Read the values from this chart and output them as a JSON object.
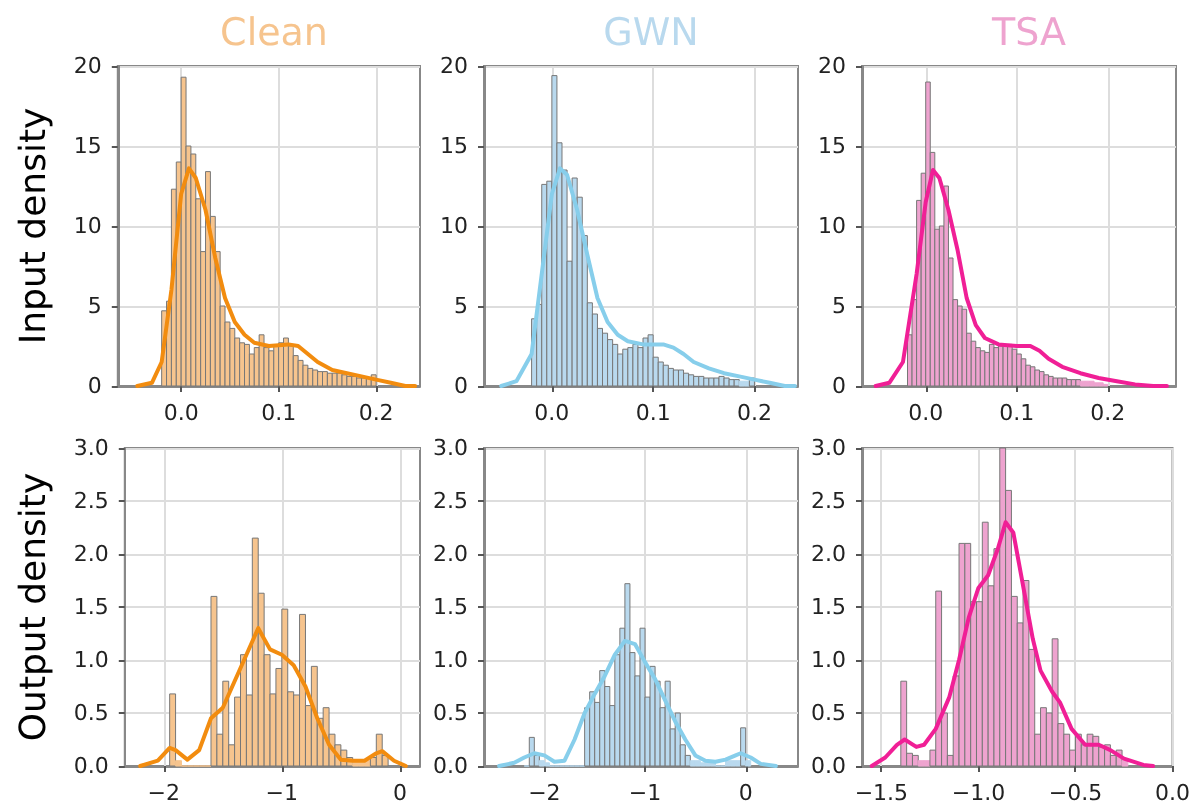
{
  "chart_data": [
    {
      "type": "histogram",
      "title": "Clean",
      "ylabel": "Input density",
      "grid": true,
      "xlim": [
        -0.065,
        0.245
      ],
      "ylim": [
        0,
        20
      ],
      "xticks": [
        {
          "value": 0,
          "label": "0.0"
        },
        {
          "value": 0.1,
          "label": "0.1"
        },
        {
          "value": 0.2,
          "label": "0.2"
        }
      ],
      "yticks": [
        0,
        5,
        10,
        15,
        20
      ],
      "bins": [
        -0.02,
        -0.015,
        -0.01,
        -0.005,
        0,
        0.005,
        0.01,
        0.015,
        0.02,
        0.025,
        0.03,
        0.035,
        0.04,
        0.045,
        0.05,
        0.055,
        0.06,
        0.065,
        0.07,
        0.075,
        0.08,
        0.085,
        0.09,
        0.095,
        0.1,
        0.105,
        0.11,
        0.115,
        0.12,
        0.125,
        0.13,
        0.135,
        0.14,
        0.145,
        0.15,
        0.155,
        0.16,
        0.165,
        0.17,
        0.175,
        0.18,
        0.185,
        0.19,
        0.195,
        0.2
      ],
      "series": [
        {
          "type": "histogram",
          "color": "#f6c48e",
          "values": [
            4.7,
            5.3,
            12.3,
            14.0,
            19.3,
            15.0,
            14.5,
            11.7,
            8.4,
            13.4,
            10.6,
            8.4,
            5.0,
            4.0,
            3.6,
            3.0,
            2.7,
            2.6,
            2.0,
            2.4,
            3.2,
            2.4,
            2.2,
            2.5,
            2.7,
            3.0,
            2.5,
            1.9,
            1.6,
            1.3,
            1.1,
            1.0,
            0.9,
            0.9,
            0.8,
            0.8,
            0.8,
            0.7,
            0.6,
            0.6,
            0.5,
            0.5,
            0.5,
            0.7
          ]
        },
        {
          "type": "line",
          "color": "#f28c0f",
          "x": [
            -0.045,
            -0.03,
            -0.02,
            -0.01,
            0.0,
            0.008,
            0.015,
            0.025,
            0.035,
            0.045,
            0.055,
            0.065,
            0.075,
            0.09,
            0.11,
            0.12,
            0.13,
            0.14,
            0.155,
            0.17,
            0.185,
            0.2,
            0.215,
            0.23,
            0.24
          ],
          "values": [
            0,
            0.2,
            1.5,
            6,
            12,
            13.6,
            13,
            11,
            8,
            5.5,
            4,
            3.2,
            2.7,
            2.5,
            2.6,
            2.5,
            2.0,
            1.5,
            1.0,
            0.8,
            0.6,
            0.4,
            0.2,
            0,
            0
          ]
        }
      ]
    },
    {
      "type": "histogram",
      "title": "GWN",
      "grid": true,
      "xlim": [
        -0.067,
        0.243
      ],
      "ylim": [
        0,
        20
      ],
      "xticks": [
        {
          "value": 0,
          "label": "0.0"
        },
        {
          "value": 0.1,
          "label": "0.1"
        },
        {
          "value": 0.2,
          "label": "0.2"
        }
      ],
      "yticks": [
        0,
        5,
        10,
        15,
        20
      ],
      "bins": [
        -0.02,
        -0.015,
        -0.01,
        -0.005,
        0,
        0.005,
        0.01,
        0.015,
        0.02,
        0.025,
        0.03,
        0.035,
        0.04,
        0.045,
        0.05,
        0.055,
        0.06,
        0.065,
        0.07,
        0.075,
        0.08,
        0.085,
        0.09,
        0.095,
        0.1,
        0.105,
        0.11,
        0.115,
        0.12,
        0.125,
        0.13,
        0.135,
        0.14,
        0.145,
        0.15,
        0.155,
        0.16,
        0.165,
        0.17,
        0.175,
        0.18,
        0.185,
        0.19,
        0.195,
        0.2
      ],
      "series": [
        {
          "type": "histogram",
          "color": "#b9d9ee",
          "values": [
            4.2,
            5.1,
            12.6,
            12.8,
            19.4,
            15.2,
            13.5,
            7.8,
            13.0,
            11.8,
            9.4,
            5.2,
            4.5,
            3.6,
            3.3,
            2.9,
            2.6,
            2.0,
            2.3,
            2.4,
            2.6,
            2.4,
            3.0,
            3.2,
            1.8,
            1.5,
            1.3,
            1.1,
            1.0,
            1.0,
            0.8,
            0.7,
            0.6,
            0.6,
            0.5,
            0.5,
            0.5,
            0.6,
            0.5,
            0.4,
            0.4,
            0.3,
            0.3,
            0.5
          ]
        },
        {
          "type": "line",
          "color": "#87ceeb",
          "x": [
            -0.05,
            -0.035,
            -0.02,
            -0.01,
            0.0,
            0.008,
            0.015,
            0.025,
            0.035,
            0.045,
            0.055,
            0.065,
            0.075,
            0.09,
            0.11,
            0.12,
            0.13,
            0.14,
            0.155,
            0.17,
            0.185,
            0.2,
            0.215,
            0.23,
            0.24
          ],
          "values": [
            0,
            0.3,
            2,
            7,
            12,
            13.6,
            13.2,
            11,
            8.2,
            5.5,
            4,
            3.2,
            2.8,
            2.6,
            2.6,
            2.4,
            2.0,
            1.5,
            1.1,
            0.8,
            0.6,
            0.4,
            0.2,
            0,
            0
          ]
        }
      ]
    },
    {
      "type": "histogram",
      "title": "TSA",
      "grid": true,
      "xlim": [
        -0.07,
        0.275
      ],
      "ylim": [
        0,
        20
      ],
      "xticks": [
        {
          "value": 0,
          "label": "0.0"
        },
        {
          "value": 0.1,
          "label": "0.1"
        },
        {
          "value": 0.2,
          "label": "0.2"
        }
      ],
      "yticks": [
        0,
        5,
        10,
        15,
        20
      ],
      "bins": [
        -0.02,
        -0.015,
        -0.01,
        -0.005,
        0,
        0.005,
        0.01,
        0.015,
        0.02,
        0.025,
        0.03,
        0.035,
        0.04,
        0.045,
        0.05,
        0.055,
        0.06,
        0.065,
        0.07,
        0.075,
        0.08,
        0.085,
        0.09,
        0.095,
        0.1,
        0.105,
        0.11,
        0.115,
        0.12,
        0.125,
        0.13,
        0.135,
        0.14,
        0.145,
        0.15,
        0.155,
        0.16,
        0.165,
        0.17,
        0.175,
        0.18,
        0.185,
        0.19,
        0.195,
        0.2
      ],
      "series": [
        {
          "type": "histogram",
          "color": "#eea3cf",
          "values": [
            3.2,
            5.4,
            11.6,
            13.3,
            19.0,
            14.6,
            9.8,
            10.0,
            12.5,
            8.0,
            5.4,
            5.0,
            4.8,
            3.3,
            2.8,
            2.4,
            2.2,
            2.1,
            2.6,
            2.4,
            2.5,
            2.5,
            2.6,
            2.3,
            2.0,
            1.7,
            1.3,
            1.2,
            1.0,
            0.9,
            0.7,
            0.6,
            0.5,
            0.5,
            0.5,
            0.4,
            0.4,
            0.4,
            0.3,
            0.3,
            0.3,
            0.2,
            0.2,
            0.1
          ]
        },
        {
          "type": "line",
          "color": "#f01f96",
          "x": [
            -0.055,
            -0.04,
            -0.025,
            -0.01,
            0.0,
            0.008,
            0.015,
            0.025,
            0.035,
            0.045,
            0.055,
            0.065,
            0.08,
            0.1,
            0.115,
            0.125,
            0.135,
            0.15,
            0.17,
            0.19,
            0.21,
            0.23,
            0.25,
            0.265
          ],
          "values": [
            0,
            0.2,
            1.5,
            7,
            11.5,
            13.5,
            13,
            11,
            8.5,
            5.5,
            3.8,
            3,
            2.6,
            2.5,
            2.5,
            2.2,
            1.7,
            1.2,
            0.8,
            0.5,
            0.3,
            0.1,
            0,
            0
          ]
        }
      ]
    },
    {
      "type": "histogram",
      "ylabel": "Output density",
      "grid": true,
      "xlim": [
        -2.33,
        0.17
      ],
      "ylim": [
        0,
        3
      ],
      "xticks": [
        {
          "value": -2,
          "label": "−2"
        },
        {
          "value": -1,
          "label": "−1"
        },
        0
      ],
      "yticks": [
        {
          "value": 0,
          "label": "0.0"
        },
        {
          "value": 0.5,
          "label": "0.5"
        },
        {
          "value": 1,
          "label": "1.0"
        },
        {
          "value": 1.5,
          "label": "1.5"
        },
        {
          "value": 2,
          "label": "2.0"
        },
        {
          "value": 2.5,
          "label": "2.5"
        },
        {
          "value": 3,
          "label": "3.0"
        }
      ],
      "bins": [
        -1.95,
        -1.9,
        -1.85,
        -1.8,
        -1.75,
        -1.7,
        -1.65,
        -1.6,
        -1.55,
        -1.5,
        -1.45,
        -1.4,
        -1.35,
        -1.3,
        -1.25,
        -1.2,
        -1.15,
        -1.1,
        -1.05,
        -1,
        -0.95,
        -0.9,
        -0.85,
        -0.8,
        -0.75,
        -0.7,
        -0.65,
        -0.6,
        -0.55,
        -0.5,
        -0.45,
        -0.4,
        -0.35,
        -0.3,
        -0.25,
        -0.2,
        -0.15,
        -0.1
      ],
      "series": [
        {
          "type": "histogram",
          "color": "#f6c48e",
          "values": [
            0.68,
            0.05,
            0,
            0,
            0,
            0,
            0,
            1.6,
            0.3,
            0.8,
            0.2,
            0.65,
            1.05,
            0.67,
            2.15,
            1.63,
            1.05,
            0.68,
            0.92,
            1.48,
            0.7,
            0.67,
            1.43,
            0.57,
            0.94,
            0.45,
            0.55,
            0.3,
            0.2,
            0.15,
            0.08,
            0.05,
            0.05,
            0.05,
            0.08,
            0.3,
            0.1
          ]
        },
        {
          "type": "line",
          "color": "#f28c0f",
          "x": [
            -2.2,
            -2.05,
            -1.95,
            -1.9,
            -1.8,
            -1.7,
            -1.6,
            -1.5,
            -1.4,
            -1.3,
            -1.2,
            -1.1,
            -1.0,
            -0.9,
            -0.8,
            -0.7,
            -0.6,
            -0.5,
            -0.4,
            -0.3,
            -0.2,
            -0.15,
            -0.05,
            0.05
          ],
          "values": [
            0,
            0.05,
            0.17,
            0.15,
            0.06,
            0.15,
            0.45,
            0.55,
            0.8,
            1.05,
            1.3,
            1.1,
            1.05,
            0.95,
            0.75,
            0.45,
            0.2,
            0.06,
            0.05,
            0.05,
            0.12,
            0.14,
            0.05,
            0
          ]
        }
      ]
    },
    {
      "type": "histogram",
      "grid": true,
      "xlim": [
        -2.6,
        0.52
      ],
      "ylim": [
        0,
        3
      ],
      "xticks": [
        {
          "value": -2,
          "label": "−2"
        },
        {
          "value": -1,
          "label": "−1"
        },
        0
      ],
      "yticks": [
        {
          "value": 0,
          "label": "0.0"
        },
        {
          "value": 0.5,
          "label": "0.5"
        },
        {
          "value": 1,
          "label": "1.0"
        },
        {
          "value": 1.5,
          "label": "1.5"
        },
        {
          "value": 2,
          "label": "2.0"
        },
        {
          "value": 2.5,
          "label": "2.5"
        },
        {
          "value": 3,
          "label": "3.0"
        }
      ],
      "bins": [
        -2.2,
        -2.15,
        -2.1,
        -2.05,
        -2,
        -1.95,
        -1.9,
        -1.85,
        -1.8,
        -1.75,
        -1.7,
        -1.65,
        -1.6,
        -1.55,
        -1.5,
        -1.45,
        -1.4,
        -1.35,
        -1.3,
        -1.25,
        -1.2,
        -1.15,
        -1.1,
        -1.05,
        -1,
        -0.95,
        -0.9,
        -0.85,
        -0.8,
        -0.75,
        -0.7,
        -0.65,
        -0.6,
        -0.55,
        -0.5,
        -0.45,
        -0.4,
        -0.35,
        -0.3,
        -0.25,
        -0.2,
        -0.15,
        -0.1,
        -0.05,
        0,
        0.05
      ],
      "series": [
        {
          "type": "histogram",
          "color": "#b9d9ee",
          "values": [
            0,
            0.27,
            0.1,
            0.05,
            0.03,
            0,
            0,
            0,
            0,
            0,
            0,
            0,
            0.55,
            0.7,
            0.6,
            0.9,
            0.75,
            0.57,
            1.05,
            1.3,
            1.72,
            1.07,
            0.85,
            1.3,
            0.65,
            0.94,
            0.8,
            0.55,
            0.8,
            0.35,
            0.5,
            0.2,
            0.1,
            0.05,
            0.05,
            0.03,
            0.03,
            0.03,
            0,
            0,
            0.05,
            0.05,
            0.05,
            0.36,
            0.05
          ]
        },
        {
          "type": "line",
          "color": "#87ceeb",
          "x": [
            -2.45,
            -2.3,
            -2.2,
            -2.1,
            -2.0,
            -1.9,
            -1.8,
            -1.7,
            -1.6,
            -1.5,
            -1.4,
            -1.3,
            -1.2,
            -1.1,
            -1.0,
            -0.9,
            -0.8,
            -0.7,
            -0.6,
            -0.5,
            -0.4,
            -0.3,
            -0.2,
            -0.1,
            -0.05,
            0.05,
            0.15,
            0.3
          ],
          "values": [
            0,
            0.03,
            0.08,
            0.12,
            0.1,
            0.04,
            0.05,
            0.25,
            0.5,
            0.68,
            0.85,
            1.05,
            1.18,
            1.15,
            0.98,
            0.82,
            0.62,
            0.42,
            0.25,
            0.1,
            0.05,
            0.04,
            0.06,
            0.1,
            0.12,
            0.08,
            0.02,
            0
          ]
        }
      ]
    },
    {
      "type": "histogram",
      "grid": true,
      "xlim": [
        -1.6,
        0
      ],
      "ylim": [
        0,
        3
      ],
      "xticks": [
        {
          "value": -1.5,
          "label": "−1.5"
        },
        {
          "value": -1,
          "label": "−1.0"
        },
        {
          "value": -0.5,
          "label": "−0.5"
        },
        {
          "value": 0,
          "label": "0.0"
        }
      ],
      "yticks": [
        {
          "value": 0,
          "label": "0.0"
        },
        {
          "value": 0.5,
          "label": "0.5"
        },
        {
          "value": 1,
          "label": "1.0"
        },
        {
          "value": 1.5,
          "label": "1.5"
        },
        {
          "value": 2,
          "label": "2.0"
        },
        {
          "value": 2.5,
          "label": "2.5"
        },
        {
          "value": 3,
          "label": "3.0"
        }
      ],
      "bins": [
        -1.4,
        -1.37,
        -1.34,
        -1.31,
        -1.28,
        -1.25,
        -1.22,
        -1.19,
        -1.16,
        -1.13,
        -1.1,
        -1.07,
        -1.04,
        -1.01,
        -0.98,
        -0.95,
        -0.92,
        -0.89,
        -0.86,
        -0.83,
        -0.8,
        -0.77,
        -0.74,
        -0.71,
        -0.68,
        -0.65,
        -0.62,
        -0.59,
        -0.56,
        -0.53,
        -0.5,
        -0.47,
        -0.44,
        -0.41,
        -0.38,
        -0.35,
        -0.32,
        -0.29,
        -0.26,
        -0.23
      ],
      "series": [
        {
          "type": "histogram",
          "color": "#eea3cf",
          "values": [
            0.8,
            0.12,
            0.1,
            0.05,
            0.05,
            0.15,
            1.65,
            0.5,
            0.1,
            0.85,
            2.1,
            2.1,
            1.55,
            1.55,
            2.3,
            1.7,
            2.05,
            3.0,
            2.6,
            1.6,
            1.35,
            1.75,
            1.1,
            0.3,
            0.55,
            0.5,
            1.2,
            0.4,
            0.3,
            0.15,
            0.3,
            0.2,
            0.3,
            0.28,
            0.18,
            0.2,
            0.1,
            0.15,
            0.05
          ]
        },
        {
          "type": "line",
          "color": "#f01f96",
          "x": [
            -1.55,
            -1.48,
            -1.42,
            -1.38,
            -1.32,
            -1.28,
            -1.22,
            -1.15,
            -1.1,
            -1.05,
            -1.0,
            -0.95,
            -0.9,
            -0.86,
            -0.82,
            -0.78,
            -0.72,
            -0.68,
            -0.62,
            -0.58,
            -0.52,
            -0.45,
            -0.38,
            -0.32,
            -0.25,
            -0.15,
            -0.1
          ],
          "values": [
            0,
            0.08,
            0.2,
            0.25,
            0.18,
            0.2,
            0.35,
            0.65,
            1.0,
            1.4,
            1.68,
            1.8,
            2.05,
            2.3,
            2.2,
            1.8,
            1.2,
            0.9,
            0.7,
            0.6,
            0.35,
            0.2,
            0.2,
            0.15,
            0.07,
            0.01,
            0
          ]
        }
      ]
    }
  ]
}
